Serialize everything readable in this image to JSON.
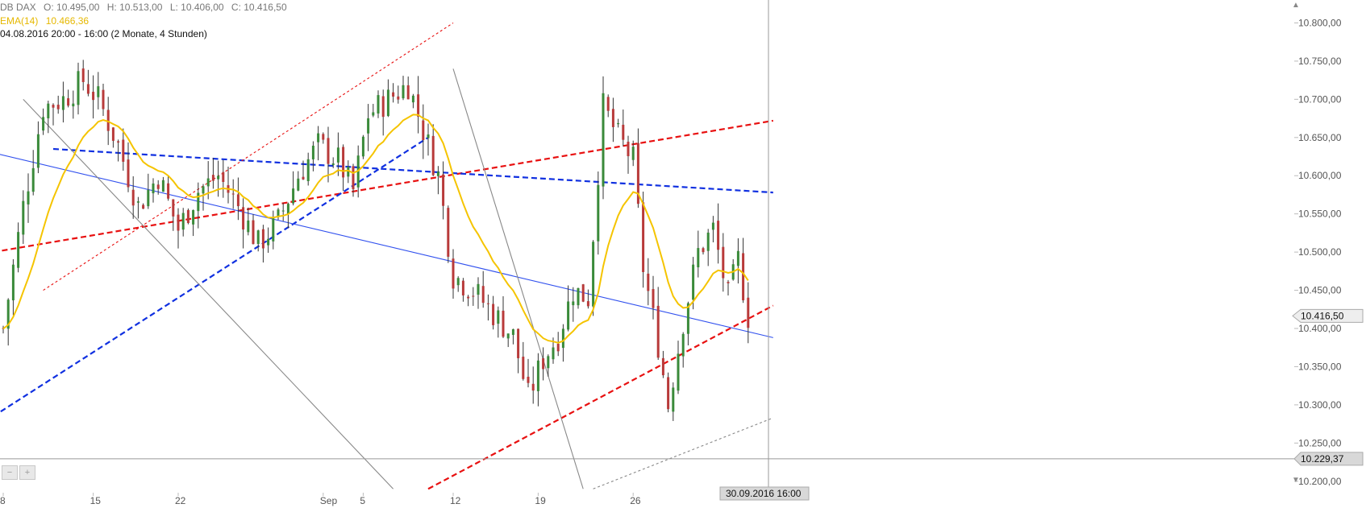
{
  "header": {
    "instrument": "DB DAX",
    "open": "O: 10.495,00",
    "high": "H: 10.513,00",
    "low": "L: 10.406,00",
    "close": "C: 10.416,50",
    "ema_label": "EMA(14)",
    "ema_value": "10.466,36",
    "period": "04.08.2016 20:00 - 16:00 (2 Monate, 4 Stunden)"
  },
  "crosshair": {
    "date_label": "30.09.2016 16:00",
    "price_label": "10.229,37"
  },
  "last_price_label": "10.416,50",
  "colors": {
    "ema": "#f5c400",
    "candle_up": "#3a8a3a",
    "candle_down": "#b83a3a",
    "wick": "#333333",
    "red_trend": "#e81010",
    "blue_trend": "#1030e0",
    "blue_solid": "#3050ee",
    "grey_line": "#888888"
  },
  "chart_data": {
    "type": "candlestick",
    "title": "DB DAX",
    "indicator": "EMA(14)",
    "y_ticks": [
      "10.800,00",
      "10.750,00",
      "10.700,00",
      "10.650,00",
      "10.600,00",
      "10.550,00",
      "10.500,00",
      "10.450,00",
      "10.400,00",
      "10.350,00",
      "10.300,00",
      "10.250,00",
      "10.200,00"
    ],
    "y_tick_values": [
      10800,
      10750,
      10700,
      10650,
      10600,
      10550,
      10500,
      10450,
      10400,
      10350,
      10300,
      10250,
      10200
    ],
    "x_ticks": [
      "8",
      "15",
      "22",
      "Sep",
      "5",
      "12",
      "19",
      "26"
    ],
    "ylim": [
      10185,
      10830
    ],
    "bars_count": 150,
    "trendlines": [
      {
        "style": "dashed",
        "color": "red",
        "from": {
          "bar": -2,
          "price": 10500
        },
        "to": {
          "bar": 154,
          "price": 10672
        }
      },
      {
        "style": "dashed",
        "color": "red",
        "from": {
          "bar": 85,
          "price": 10190
        },
        "to": {
          "bar": 154,
          "price": 10430
        }
      },
      {
        "style": "dashed",
        "color": "blue",
        "from": {
          "bar": 10,
          "price": 10635
        },
        "to": {
          "bar": 154,
          "price": 10578
        }
      },
      {
        "style": "dashed",
        "color": "blue",
        "from": {
          "bar": -2,
          "price": 10285
        },
        "to": {
          "bar": 85,
          "price": 10650
        }
      },
      {
        "style": "solid",
        "color": "blue",
        "from": {
          "bar": -2,
          "price": 10630
        },
        "to": {
          "bar": 154,
          "price": 10388
        }
      },
      {
        "style": "dotted",
        "color": "red",
        "from": {
          "bar": 8,
          "price": 10450
        },
        "to": {
          "bar": 90,
          "price": 10800
        }
      },
      {
        "style": "dotted",
        "color": "grey",
        "from": {
          "bar": 118,
          "price": 10190
        },
        "to": {
          "bar": 154,
          "price": 10283
        }
      },
      {
        "style": "solid",
        "color": "grey",
        "from": {
          "bar": 4,
          "price": 10700
        },
        "to": {
          "bar": 78,
          "price": 10190
        }
      },
      {
        "style": "solid",
        "color": "grey",
        "from": {
          "bar": 90,
          "price": 10740
        },
        "to": {
          "bar": 116,
          "price": 10190
        }
      }
    ],
    "key_levels": {
      "last": 10416.5,
      "crosshair_price": 10229.37
    }
  }
}
